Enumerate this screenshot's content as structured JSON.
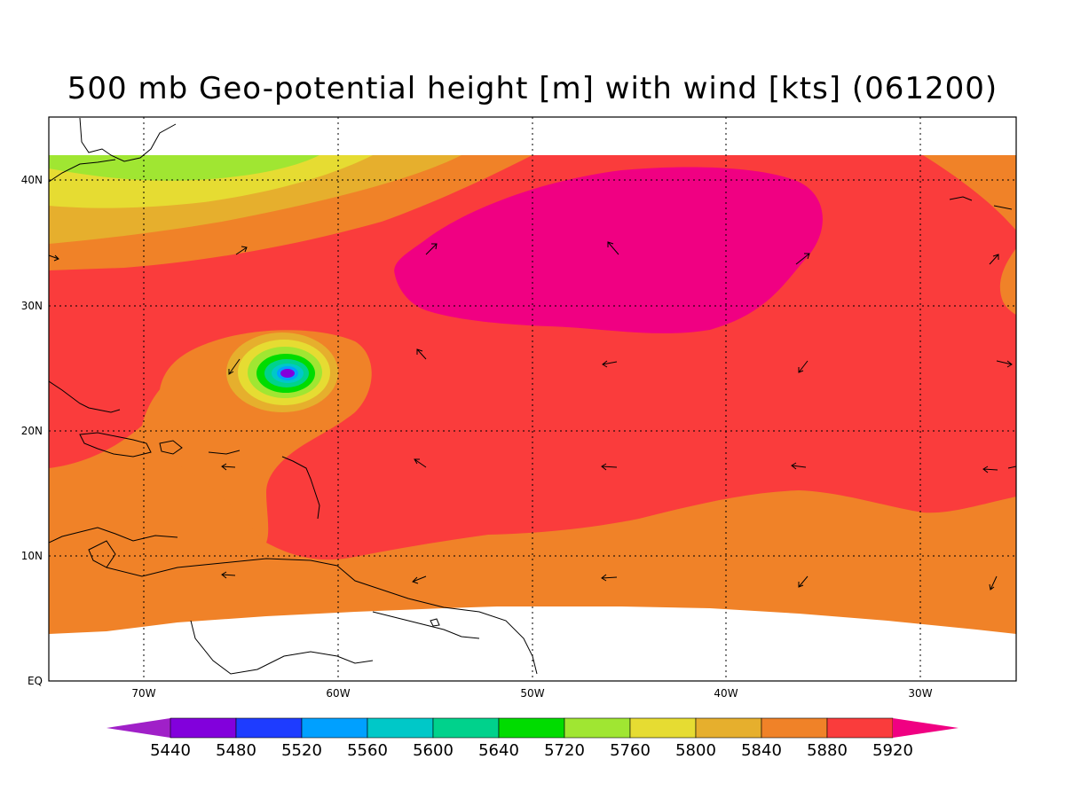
{
  "title": "500 mb Geo-potential height [m] with wind [kts] (061200)",
  "lat_labels": [
    "40N",
    "30N",
    "20N",
    "10N",
    "EQ"
  ],
  "lon_labels": [
    "70W",
    "60W",
    "50W",
    "40W",
    "30W"
  ],
  "colorbar": {
    "levels": [
      "5440",
      "5480",
      "5520",
      "5560",
      "5600",
      "5640",
      "5720",
      "5760",
      "5800",
      "5840",
      "5880",
      "5920"
    ],
    "colors": [
      "#a020c8",
      "#8200dc",
      "#1e3cff",
      "#00a0ff",
      "#00c8c8",
      "#00d28c",
      "#00dc00",
      "#a0e632",
      "#e6dc32",
      "#e6af2d",
      "#f08228",
      "#fa3c3c",
      "#f00082"
    ]
  },
  "palette": {
    "c5640": "#00d28c",
    "c5720": "#00dc00",
    "c5760": "#a0e632",
    "c5800": "#e6dc32",
    "c5840": "#e6af2d",
    "c5880": "#f08228",
    "c5920": "#fa3c3c",
    "chigh": "#f00082",
    "c5600": "#00c8c8",
    "c5560": "#00a0ff",
    "c5520": "#1e3cff",
    "c5480": "#8200dc",
    "clow": "#a020c8"
  }
}
